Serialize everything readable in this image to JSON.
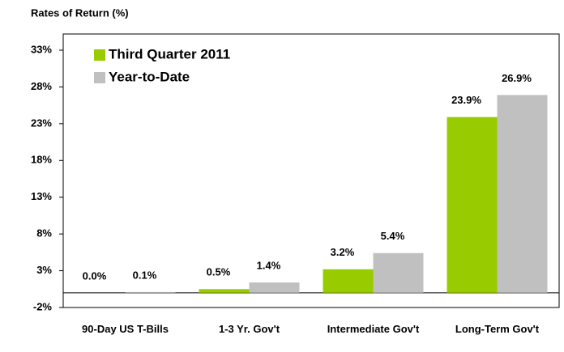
{
  "chart_data": {
    "type": "bar",
    "title": "Rates of Return (%)",
    "categories": [
      "90-Day US T-Bills",
      "1-3 Yr. Gov't",
      "Intermediate Gov't",
      "Long-Term Gov't"
    ],
    "series": [
      {
        "name": "Third Quarter 2011",
        "color": "#99cc00",
        "values": [
          0.0,
          0.5,
          3.2,
          23.9
        ],
        "value_labels": [
          "0.0%",
          "0.5%",
          "3.2%",
          "23.9%"
        ]
      },
      {
        "name": "Year-to-Date",
        "color": "#c0c0c0",
        "values": [
          0.1,
          1.4,
          5.4,
          26.9
        ],
        "value_labels": [
          "0.1%",
          "1.4%",
          "5.4%",
          "26.9%"
        ]
      }
    ],
    "ylim": [
      -2,
      35.2
    ],
    "yticks": [
      {
        "value": -2,
        "label": "-2%"
      },
      {
        "value": 3,
        "label": "3%"
      },
      {
        "value": 8,
        "label": "8%"
      },
      {
        "value": 13,
        "label": "13%"
      },
      {
        "value": 18,
        "label": "18%"
      },
      {
        "value": 23,
        "label": "23%"
      },
      {
        "value": 28,
        "label": "28%"
      },
      {
        "value": 33,
        "label": "33%"
      }
    ],
    "legend": "upper left",
    "grid": false
  }
}
